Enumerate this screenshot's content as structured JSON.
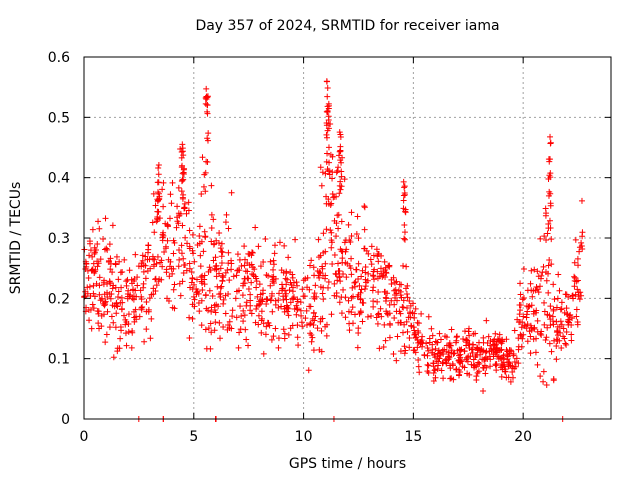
{
  "chart_data": {
    "type": "scatter",
    "title": "Day 357 of 2024, SRMTID for receiver iama",
    "xlabel": "GPS time / hours",
    "ylabel": "SRMTID / TECUs",
    "xlim": [
      0,
      24
    ],
    "ylim": [
      0,
      0.6
    ],
    "x_ticks": [
      0,
      5,
      10,
      15,
      20
    ],
    "y_ticks": [
      0,
      0.1,
      0.2,
      0.3,
      0.4,
      0.5,
      0.6
    ],
    "x_tick_labels": [
      "0",
      "5",
      "10",
      "15",
      "20"
    ],
    "y_tick_labels": [
      "0",
      "0.1",
      "0.2",
      "0.3",
      "0.4",
      "0.5",
      "0.6"
    ],
    "grid": true,
    "marker": "+",
    "series_color": "#ff0000",
    "profile": [
      [
        0.0,
        0.2,
        0.04
      ],
      [
        0.5,
        0.23,
        0.04
      ],
      [
        1.0,
        0.24,
        0.05
      ],
      [
        1.5,
        0.2,
        0.04
      ],
      [
        2.0,
        0.19,
        0.04
      ],
      [
        2.5,
        0.2,
        0.04
      ],
      [
        3.0,
        0.23,
        0.05
      ],
      [
        3.5,
        0.29,
        0.06
      ],
      [
        4.0,
        0.28,
        0.06
      ],
      [
        4.5,
        0.3,
        0.07
      ],
      [
        5.0,
        0.22,
        0.05
      ],
      [
        5.5,
        0.3,
        0.08
      ],
      [
        6.0,
        0.24,
        0.05
      ],
      [
        6.5,
        0.23,
        0.05
      ],
      [
        7.0,
        0.2,
        0.05
      ],
      [
        7.5,
        0.22,
        0.04
      ],
      [
        8.0,
        0.22,
        0.04
      ],
      [
        8.5,
        0.2,
        0.04
      ],
      [
        9.0,
        0.19,
        0.04
      ],
      [
        9.5,
        0.2,
        0.04
      ],
      [
        10.0,
        0.18,
        0.04
      ],
      [
        10.5,
        0.17,
        0.04
      ],
      [
        11.0,
        0.3,
        0.09
      ],
      [
        11.5,
        0.3,
        0.08
      ],
      [
        12.0,
        0.22,
        0.05
      ],
      [
        12.5,
        0.23,
        0.05
      ],
      [
        13.0,
        0.24,
        0.04
      ],
      [
        13.5,
        0.22,
        0.04
      ],
      [
        14.0,
        0.18,
        0.04
      ],
      [
        14.5,
        0.2,
        0.05
      ],
      [
        15.0,
        0.15,
        0.03
      ],
      [
        15.5,
        0.12,
        0.02
      ],
      [
        16.0,
        0.1,
        0.02
      ],
      [
        16.5,
        0.11,
        0.02
      ],
      [
        17.0,
        0.1,
        0.02
      ],
      [
        17.5,
        0.11,
        0.02
      ],
      [
        18.0,
        0.1,
        0.02
      ],
      [
        18.5,
        0.11,
        0.02
      ],
      [
        19.0,
        0.1,
        0.02
      ],
      [
        19.5,
        0.09,
        0.02
      ],
      [
        20.0,
        0.18,
        0.04
      ],
      [
        20.5,
        0.17,
        0.04
      ],
      [
        21.0,
        0.22,
        0.07
      ],
      [
        21.5,
        0.15,
        0.04
      ],
      [
        22.0,
        0.17,
        0.03
      ],
      [
        22.5,
        0.24,
        0.05
      ],
      [
        22.7,
        0.25,
        0.05
      ]
    ],
    "peaks": [
      {
        "x": 3.4,
        "values": [
          0.36,
          0.38,
          0.4,
          0.42,
          0.39
        ]
      },
      {
        "x": 4.5,
        "values": [
          0.38,
          0.41,
          0.43,
          0.45,
          0.46,
          0.42,
          0.4
        ]
      },
      {
        "x": 5.6,
        "values": [
          0.43,
          0.49,
          0.53,
          0.54,
          0.55,
          0.56
        ]
      },
      {
        "x": 11.1,
        "values": [
          0.44,
          0.48,
          0.5,
          0.52,
          0.53,
          0.54,
          0.56
        ]
      },
      {
        "x": 11.7,
        "values": [
          0.4,
          0.43,
          0.45,
          0.47,
          0.49
        ]
      },
      {
        "x": 14.6,
        "values": [
          0.32,
          0.35,
          0.37,
          0.39,
          0.4
        ]
      },
      {
        "x": 21.2,
        "values": [
          0.34,
          0.37,
          0.4,
          0.43,
          0.45,
          0.47
        ]
      }
    ],
    "zero_points": [
      2.5,
      3.6,
      3.6,
      6.0,
      6.0,
      11.4,
      21.8
    ]
  }
}
